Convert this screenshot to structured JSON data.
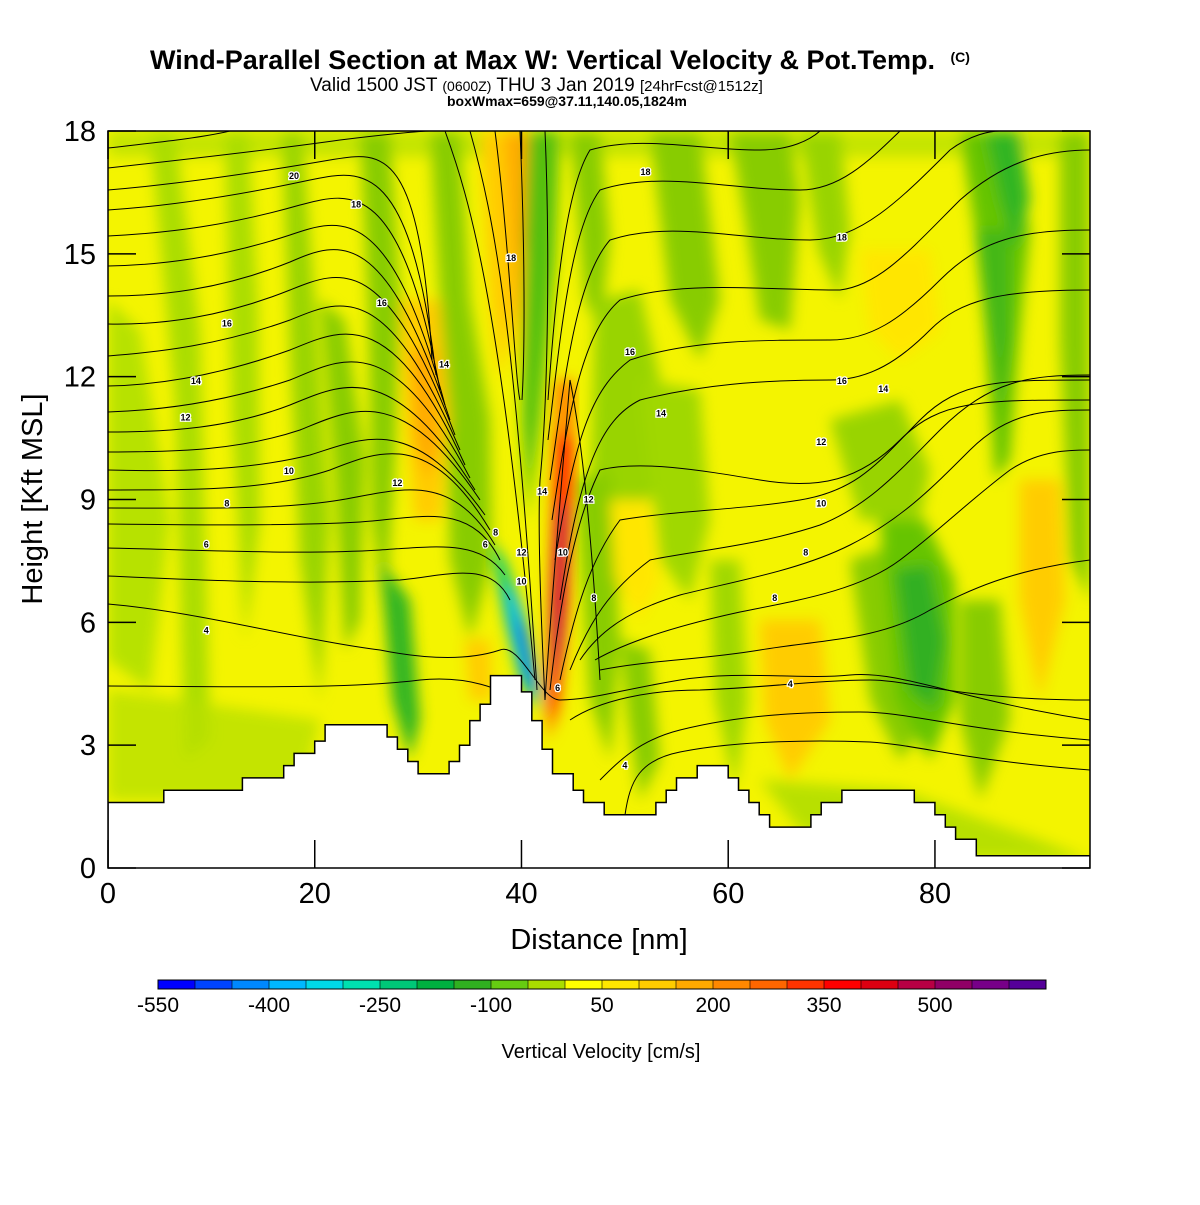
{
  "header": {
    "title_main": "Wind-Parallel Section at Max W: Vertical Velocity & Pot.Temp.",
    "title_mark": "(C)",
    "subtitle_a": "Valid 1500 JST",
    "subtitle_b": "(0600Z)",
    "subtitle_c": "THU 3 Jan 2019",
    "subtitle_d": "[24hrFcst@1512z]",
    "subtitle2": "boxWmax=659@37.11,140.05,1824m"
  },
  "chart_data": {
    "type": "heatmap",
    "xlabel": "Distance [nm]",
    "ylabel": "Height [Kft MSL]",
    "xlim": [
      0,
      95
    ],
    "ylim": [
      0,
      18
    ],
    "xticks": [
      0,
      20,
      40,
      60,
      80
    ],
    "yticks": [
      0,
      3,
      6,
      9,
      12,
      15,
      18
    ],
    "colorbar": {
      "label": "Vertical Velocity [cm/s]",
      "tick_labels": [
        "-550",
        "-400",
        "-250",
        "-100",
        "50",
        "200",
        "350",
        "500"
      ],
      "colors": [
        "#0000ff",
        "#0044ff",
        "#0088ff",
        "#00b8ff",
        "#00d8e8",
        "#00e0b0",
        "#00c878",
        "#00b040",
        "#30b020",
        "#66cc11",
        "#aadd00",
        "#ffff00",
        "#ffe600",
        "#ffcc00",
        "#ffaa00",
        "#ff8800",
        "#ff6600",
        "#ff3300",
        "#ff0000",
        "#dd0011",
        "#b80044",
        "#900066",
        "#770088",
        "#550099"
      ]
    },
    "terrain_kft": [
      [
        0,
        1.6
      ],
      [
        5.4,
        1.6
      ],
      [
        5.4,
        1.9
      ],
      [
        13,
        1.9
      ],
      [
        13,
        2.2
      ],
      [
        17,
        2.2
      ],
      [
        17,
        2.5
      ],
      [
        18,
        2.5
      ],
      [
        18,
        2.8
      ],
      [
        20,
        2.8
      ],
      [
        20,
        3.1
      ],
      [
        21,
        3.1
      ],
      [
        21,
        3.5
      ],
      [
        27,
        3.5
      ],
      [
        27,
        3.2
      ],
      [
        28,
        3.2
      ],
      [
        28,
        2.9
      ],
      [
        29,
        2.9
      ],
      [
        29,
        2.6
      ],
      [
        30,
        2.6
      ],
      [
        30,
        2.3
      ],
      [
        33,
        2.3
      ],
      [
        33,
        2.6
      ],
      [
        34,
        2.6
      ],
      [
        34,
        3.0
      ],
      [
        35,
        3.0
      ],
      [
        35,
        3.6
      ],
      [
        36,
        3.6
      ],
      [
        36,
        4.0
      ],
      [
        37,
        4.0
      ],
      [
        37,
        4.7
      ],
      [
        40,
        4.7
      ],
      [
        40,
        4.3
      ],
      [
        41,
        4.3
      ],
      [
        41,
        3.6
      ],
      [
        42,
        3.6
      ],
      [
        42,
        2.9
      ],
      [
        43,
        2.9
      ],
      [
        43,
        2.3
      ],
      [
        45,
        2.3
      ],
      [
        45,
        1.9
      ],
      [
        46,
        1.9
      ],
      [
        46,
        1.6
      ],
      [
        48,
        1.6
      ],
      [
        48,
        1.3
      ],
      [
        53,
        1.3
      ],
      [
        53,
        1.6
      ],
      [
        54,
        1.6
      ],
      [
        54,
        1.9
      ],
      [
        55,
        1.9
      ],
      [
        55,
        2.2
      ],
      [
        57,
        2.2
      ],
      [
        57,
        2.5
      ],
      [
        60,
        2.5
      ],
      [
        60,
        2.2
      ],
      [
        61,
        2.2
      ],
      [
        61,
        1.9
      ],
      [
        62,
        1.9
      ],
      [
        62,
        1.6
      ],
      [
        63,
        1.6
      ],
      [
        63,
        1.3
      ],
      [
        64,
        1.3
      ],
      [
        64,
        1.0
      ],
      [
        68,
        1.0
      ],
      [
        68,
        1.3
      ],
      [
        69,
        1.3
      ],
      [
        69,
        1.6
      ],
      [
        71,
        1.6
      ],
      [
        71,
        1.9
      ],
      [
        78,
        1.9
      ],
      [
        78,
        1.6
      ],
      [
        80,
        1.6
      ],
      [
        80,
        1.3
      ],
      [
        81,
        1.3
      ],
      [
        81,
        1.0
      ],
      [
        82,
        1.0
      ],
      [
        82,
        0.7
      ],
      [
        84,
        0.7
      ],
      [
        84,
        0.3
      ],
      [
        95,
        0.3
      ]
    ],
    "contour_labels": [
      {
        "text": "20",
        "x": 18,
        "y": 16.9
      },
      {
        "text": "18",
        "x": 24,
        "y": 16.2
      },
      {
        "text": "16",
        "x": 11.5,
        "y": 13.3
      },
      {
        "text": "14",
        "x": 8.5,
        "y": 11.9
      },
      {
        "text": "12",
        "x": 7.5,
        "y": 11.0
      },
      {
        "text": "10",
        "x": 17.5,
        "y": 9.7
      },
      {
        "text": "8",
        "x": 11.5,
        "y": 8.9
      },
      {
        "text": "6",
        "x": 9.5,
        "y": 7.9
      },
      {
        "text": "4",
        "x": 9.5,
        "y": 5.8
      },
      {
        "text": "16",
        "x": 26.5,
        "y": 13.8
      },
      {
        "text": "14",
        "x": 32.5,
        "y": 12.3
      },
      {
        "text": "12",
        "x": 28,
        "y": 9.4
      },
      {
        "text": "8",
        "x": 37.5,
        "y": 8.2
      },
      {
        "text": "6",
        "x": 36.5,
        "y": 7.9
      },
      {
        "text": "18",
        "x": 39,
        "y": 14.9
      },
      {
        "text": "14",
        "x": 42,
        "y": 9.2
      },
      {
        "text": "12",
        "x": 40,
        "y": 7.7
      },
      {
        "text": "10",
        "x": 40,
        "y": 7.0
      },
      {
        "text": "10",
        "x": 44,
        "y": 7.7
      },
      {
        "text": "12",
        "x": 46.5,
        "y": 9.0
      },
      {
        "text": "8",
        "x": 47,
        "y": 6.6
      },
      {
        "text": "6",
        "x": 43.5,
        "y": 4.4
      },
      {
        "text": "18",
        "x": 52,
        "y": 17.0
      },
      {
        "text": "16",
        "x": 50.5,
        "y": 12.6
      },
      {
        "text": "14",
        "x": 53.5,
        "y": 11.1
      },
      {
        "text": "4",
        "x": 50,
        "y": 2.5
      },
      {
        "text": "18",
        "x": 71,
        "y": 15.4
      },
      {
        "text": "16",
        "x": 71,
        "y": 11.9
      },
      {
        "text": "14",
        "x": 75,
        "y": 11.7
      },
      {
        "text": "12",
        "x": 69,
        "y": 10.4
      },
      {
        "text": "10",
        "x": 69,
        "y": 8.9
      },
      {
        "text": "8",
        "x": 67.5,
        "y": 7.7
      },
      {
        "text": "8",
        "x": 64.5,
        "y": 6.6
      },
      {
        "text": "4",
        "x": 66,
        "y": 4.5
      }
    ]
  }
}
